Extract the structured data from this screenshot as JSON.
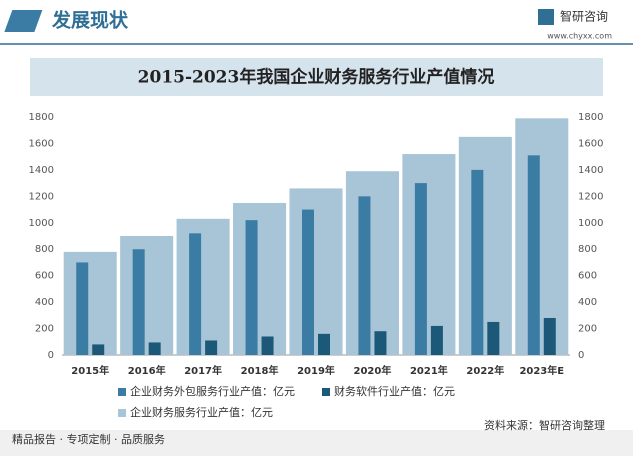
{
  "header": {
    "title": "发展现状",
    "brand": "智研咨询",
    "url": "www.chyxx.com"
  },
  "chart_data": {
    "type": "bar",
    "title": "2015-2023年我国企业财务服务行业产值情况",
    "categories": [
      "2015年",
      "2016年",
      "2017年",
      "2018年",
      "2019年",
      "2020年",
      "2021年",
      "2022年",
      "2023年E"
    ],
    "series": [
      {
        "name": "企业财务外包服务行业产值：亿元",
        "color": "#3a7ca3",
        "values": [
          700,
          800,
          920,
          1020,
          1100,
          1200,
          1300,
          1400,
          1510
        ]
      },
      {
        "name": "财务软件行业产值：亿元",
        "color": "#1c5878",
        "values": [
          80,
          95,
          110,
          140,
          160,
          180,
          220,
          250,
          280
        ]
      },
      {
        "name": "企业财务服务行业产值：亿元",
        "color": "#a8c5d7",
        "values": [
          780,
          900,
          1030,
          1150,
          1260,
          1390,
          1520,
          1650,
          1790
        ]
      }
    ],
    "ylim": [
      0,
      1800
    ],
    "yticks": [
      0,
      200,
      400,
      600,
      800,
      1000,
      1200,
      1400,
      1600,
      1800
    ],
    "y2lim": [
      0,
      1800
    ],
    "y2ticks": [
      0,
      200,
      400,
      600,
      800,
      1000,
      1200,
      1400,
      1600,
      1800
    ]
  },
  "footer": {
    "left": "精品报告 · 专项定制 · 品质服务",
    "source": "资料来源：智研咨询整理"
  }
}
